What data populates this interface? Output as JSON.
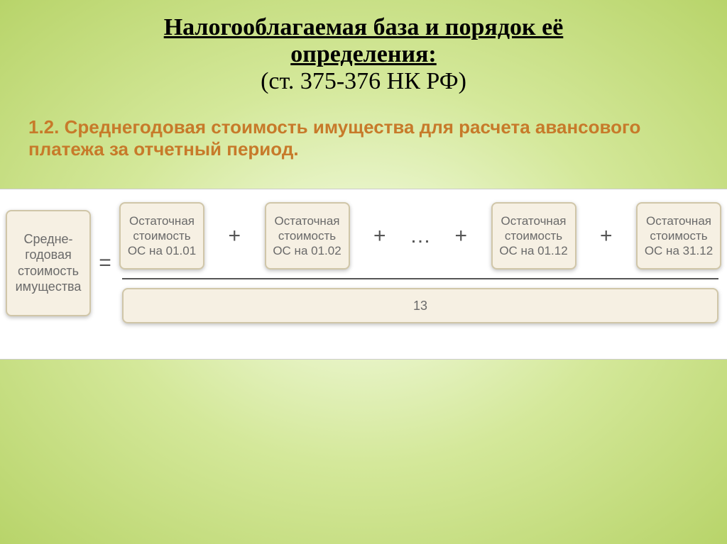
{
  "title": {
    "line1": "Налогооблагаемая база и порядок её",
    "line2": "определения:",
    "line3": "(ст. 375-376 НК РФ)",
    "underline_color": "#000000",
    "main_color": "#000000",
    "sub_color": "#000000",
    "fontsize_main": 34,
    "fontsize_sub": 34
  },
  "subheading": {
    "text": "1.2. Среднегодовая стоимость имущества для расчета авансового платежа за отчетный период.",
    "color": "#c77a2a",
    "fontsize": 26
  },
  "formula": {
    "left_label": "Средне-\nгодовая\nстоимость\nимущества",
    "equals": "=",
    "numerator_boxes": [
      "Остаточная\nстоимость\nОС на 01.01",
      "Остаточная\nстоимость\nОС на 01.02",
      "…",
      "Остаточная\nстоимость\nОС на 01.12",
      "Остаточная\nстоимость\nОС на 31.12"
    ],
    "plus": "+",
    "ellipsis": "…",
    "denominator": "13",
    "box_bg": "#f6f0e3",
    "box_border": "#d0c6a8",
    "text_color": "#6a6a6a",
    "box_fontsize": 17,
    "left_box_fontsize": 18,
    "op_fontsize": 30,
    "op_color": "#555555",
    "denominator_fontsize": 18,
    "frac_line_color": "#555555",
    "formula_bg": "#ffffff"
  },
  "background": {
    "gradient_from": "#f5fce6",
    "gradient_mid": "#d4e89a",
    "gradient_to": "#b8d46a"
  }
}
